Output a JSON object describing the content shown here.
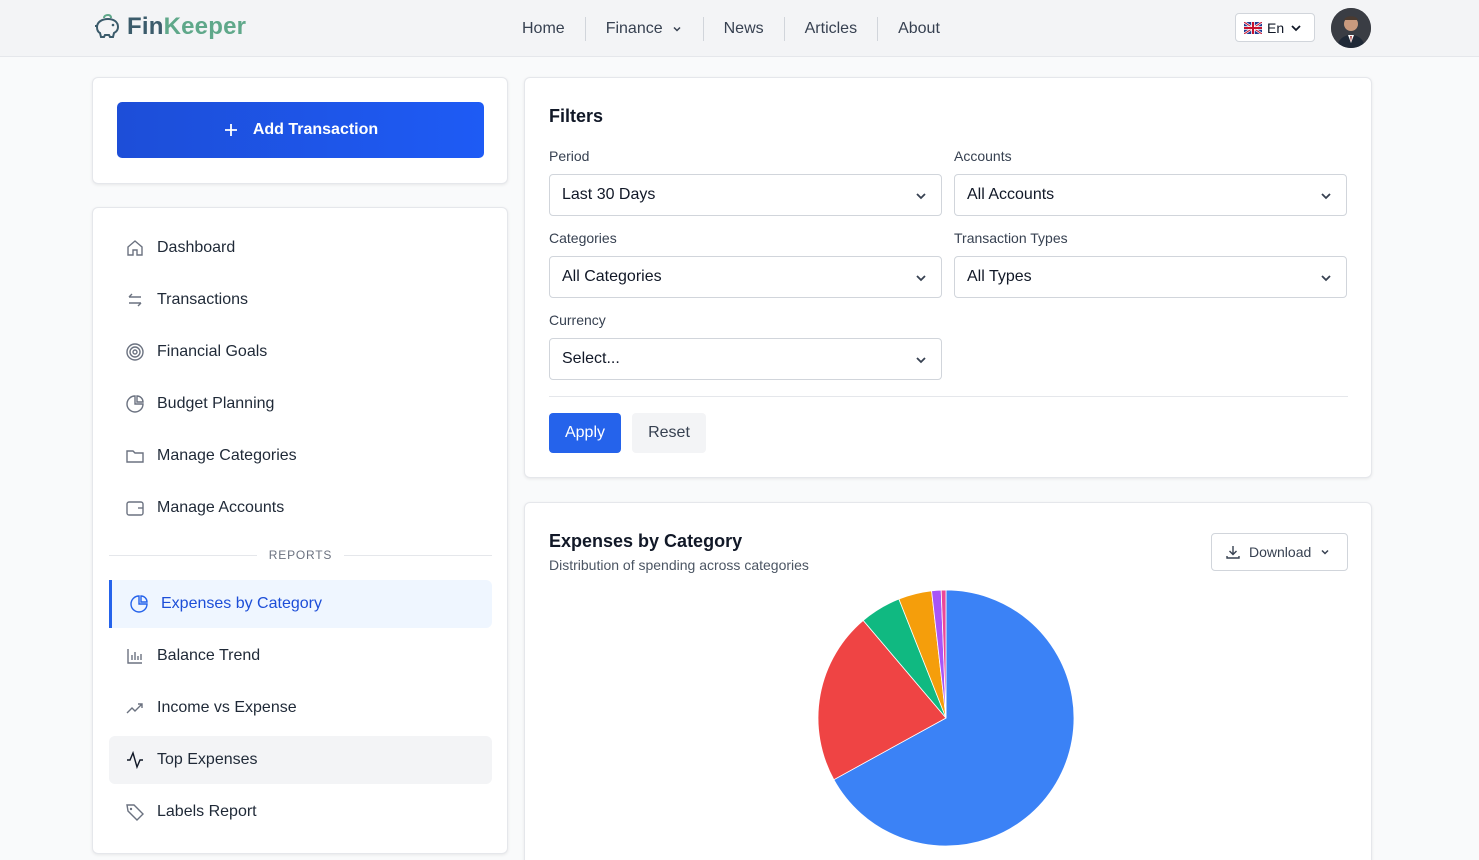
{
  "brand": {
    "part1": "Fin",
    "part2": "Keeper"
  },
  "nav": {
    "home": "Home",
    "finance": "Finance",
    "news": "News",
    "articles": "Articles",
    "about": "About"
  },
  "lang": {
    "label": "En"
  },
  "add_transaction": {
    "label": "Add Transaction"
  },
  "sidebar": {
    "items": [
      {
        "label": "Dashboard",
        "icon": "home-icon"
      },
      {
        "label": "Transactions",
        "icon": "arrows-icon"
      },
      {
        "label": "Financial Goals",
        "icon": "target-icon"
      },
      {
        "label": "Budget Planning",
        "icon": "pie-icon"
      },
      {
        "label": "Manage Categories",
        "icon": "folder-icon"
      },
      {
        "label": "Manage Accounts",
        "icon": "wallet-icon"
      }
    ],
    "section": "REPORTS",
    "reports": [
      {
        "label": "Expenses by Category",
        "icon": "pie-icon",
        "active": true
      },
      {
        "label": "Balance Trend",
        "icon": "bar-chart-icon"
      },
      {
        "label": "Income vs Expense",
        "icon": "trend-icon"
      },
      {
        "label": "Top Expenses",
        "icon": "activity-icon"
      },
      {
        "label": "Labels Report",
        "icon": "tag-icon"
      }
    ]
  },
  "filters": {
    "title": "Filters",
    "period": {
      "label": "Period",
      "value": "Last 30 Days"
    },
    "accounts": {
      "label": "Accounts",
      "value": "All Accounts"
    },
    "categories": {
      "label": "Categories",
      "value": "All Categories"
    },
    "types": {
      "label": "Transaction Types",
      "value": "All Types"
    },
    "currency": {
      "label": "Currency",
      "value": "Select..."
    },
    "apply": "Apply",
    "reset": "Reset"
  },
  "report": {
    "title": "Expenses by Category",
    "subtitle": "Distribution of spending across categories",
    "download": "Download"
  },
  "colors": {
    "primary": "#2563eb",
    "slice_blue": "#3b82f6",
    "slice_red": "#ef4444",
    "slice_green": "#10b981",
    "slice_orange": "#f59e0b",
    "slice_purple": "#a855f7",
    "slice_pink": "#ec4899"
  },
  "chart_data": {
    "type": "pie",
    "categories": [
      "",
      "",
      "",
      "",
      "",
      ""
    ],
    "values": [
      67.0,
      21.8,
      5.2,
      4.2,
      1.2,
      0.6
    ],
    "colors": [
      "#3b82f6",
      "#ef4444",
      "#10b981",
      "#f59e0b",
      "#a855f7",
      "#ec4899"
    ],
    "title": "",
    "legend": "none"
  }
}
